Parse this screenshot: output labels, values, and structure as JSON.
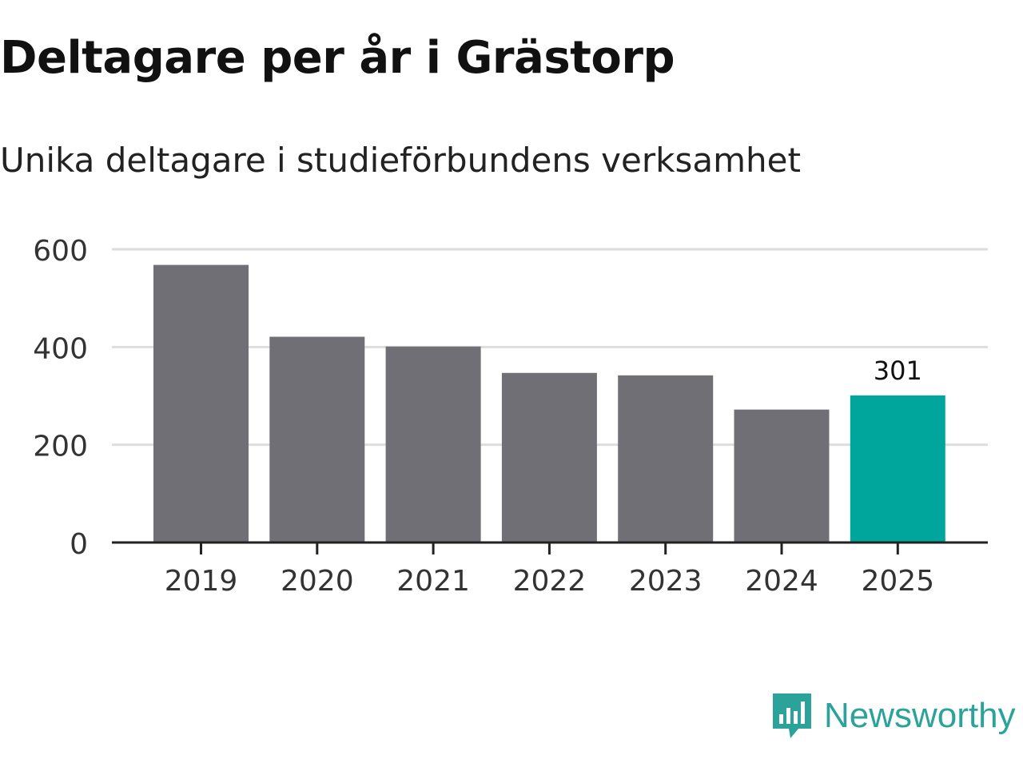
{
  "title": "Deltagare per år i Grästorp",
  "subtitle": "Unika deltagare i studieförbundens verksamhet",
  "colors": {
    "bar": "#706f75",
    "highlight": "#00a69c",
    "grid": "#dddddd",
    "axis": "#222222",
    "brand": "#2ba39a"
  },
  "chart_data": {
    "type": "bar",
    "title": "Deltagare per år i Grästorp",
    "subtitle": "Unika deltagare i studieförbundens verksamhet",
    "xlabel": "",
    "ylabel": "",
    "categories": [
      "2019",
      "2020",
      "2021",
      "2022",
      "2023",
      "2024",
      "2025"
    ],
    "values": [
      568,
      421,
      401,
      347,
      342,
      272,
      301
    ],
    "highlight_index": 6,
    "data_labels": [
      {
        "category": "2025",
        "text": "301"
      }
    ],
    "ylim": [
      0,
      600
    ],
    "yticks": [
      0,
      200,
      400,
      600
    ],
    "ytick_labels": [
      "0",
      "200",
      "400",
      "600"
    ],
    "grid": true,
    "legend": null
  },
  "logo": {
    "icon": "newsworthy-logo-icon",
    "text": "Newsworthy"
  }
}
